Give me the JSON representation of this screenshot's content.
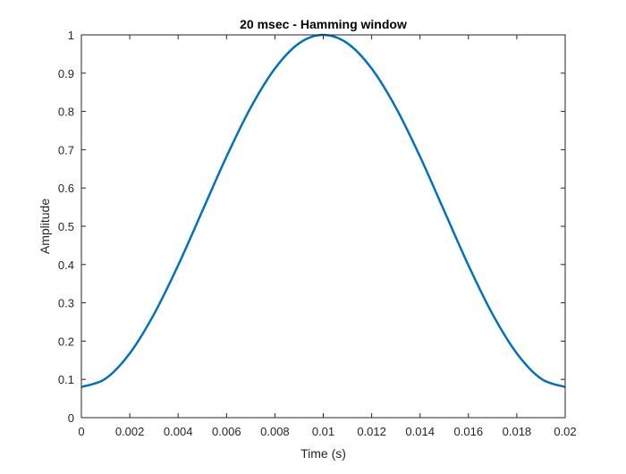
{
  "chart_data": {
    "type": "line",
    "title": "20 msec - Hamming window",
    "xlabel": "Time (s)",
    "ylabel": "Amplitude",
    "xlim": [
      0,
      0.02
    ],
    "ylim": [
      0,
      1
    ],
    "grid": false,
    "legend": "none",
    "xticks": [
      0,
      0.002,
      0.004,
      0.006,
      0.008,
      0.01,
      0.012,
      0.014,
      0.016,
      0.018,
      0.02
    ],
    "xtick_labels": [
      "0",
      "0.002",
      "0.004",
      "0.006",
      "0.008",
      "0.01",
      "0.012",
      "0.014",
      "0.016",
      "0.018",
      "0.02"
    ],
    "yticks": [
      0,
      0.1,
      0.2,
      0.3,
      0.4,
      0.5,
      0.6,
      0.7,
      0.8,
      0.9,
      1
    ],
    "ytick_labels": [
      "0",
      "0.1",
      "0.2",
      "0.3",
      "0.4",
      "0.5",
      "0.6",
      "0.7",
      "0.8",
      "0.9",
      "1"
    ],
    "series": [
      {
        "color": "#0072BD",
        "x": [
          0,
          0.001,
          0.002,
          0.003,
          0.004,
          0.005,
          0.006,
          0.007,
          0.008,
          0.009,
          0.01,
          0.011,
          0.012,
          0.013,
          0.014,
          0.015,
          0.016,
          0.017,
          0.018,
          0.019,
          0.02
        ],
        "y": [
          0.08,
          0.102,
          0.168,
          0.27,
          0.398,
          0.54,
          0.682,
          0.81,
          0.912,
          0.978,
          1.0,
          0.978,
          0.912,
          0.81,
          0.682,
          0.54,
          0.398,
          0.27,
          0.168,
          0.102,
          0.08
        ]
      }
    ]
  }
}
